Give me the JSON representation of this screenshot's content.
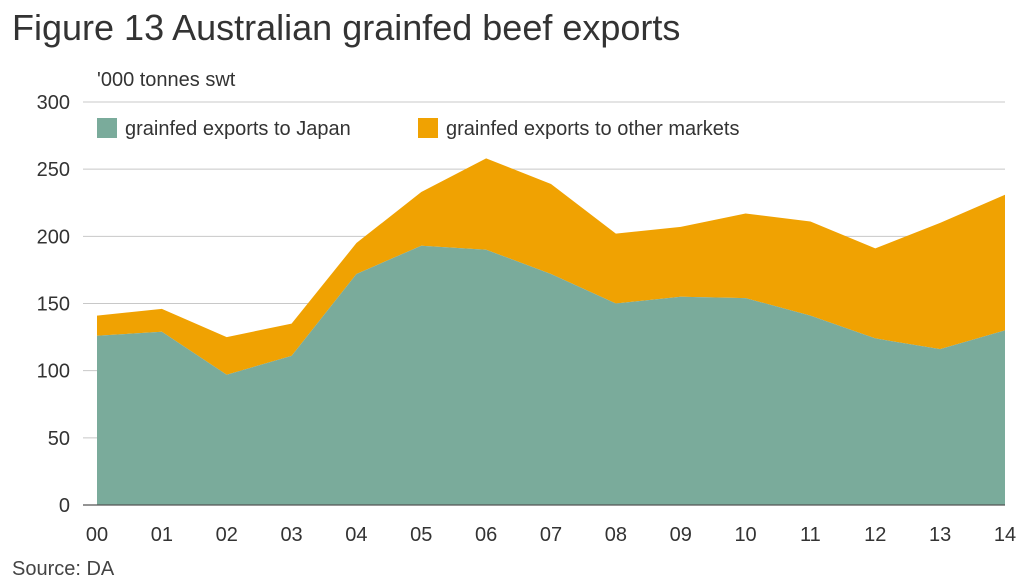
{
  "title": "Figure 13 Australian grainfed beef exports",
  "source": "Source: DA",
  "colors": {
    "japan": "#7aab9b",
    "other": "#f0a202",
    "grid": "#c8c8c8"
  },
  "chart_data": {
    "type": "area",
    "stacked": true,
    "ylabel": "'000 tonnes swt",
    "xlabel": "",
    "categories": [
      "00",
      "01",
      "02",
      "03",
      "04",
      "05",
      "06",
      "07",
      "08",
      "09",
      "10",
      "11",
      "12",
      "13",
      "14"
    ],
    "ylim": [
      0,
      300
    ],
    "yticks": [
      0,
      50,
      100,
      150,
      200,
      250,
      300
    ],
    "grid": true,
    "legend_position": "top-left",
    "series": [
      {
        "name": "grainfed exports to Japan",
        "values": [
          126,
          129,
          97,
          111,
          172,
          193,
          190,
          172,
          150,
          155,
          154,
          141,
          124,
          116,
          130
        ]
      },
      {
        "name": "grainfed exports to other markets",
        "values": [
          15,
          17,
          28,
          24,
          23,
          40,
          68,
          67,
          52,
          52,
          63,
          70,
          67,
          94,
          101
        ]
      }
    ]
  }
}
